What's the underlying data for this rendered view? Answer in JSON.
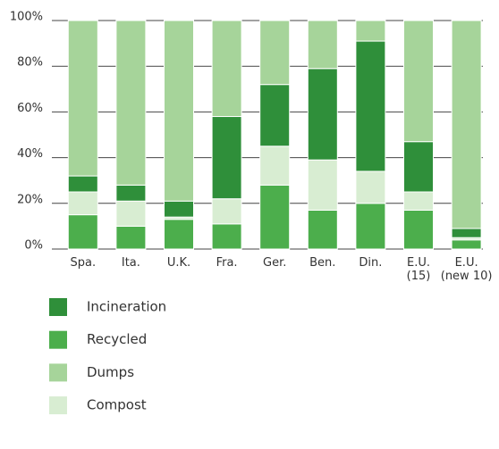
{
  "chart_data": {
    "type": "stacked_bar",
    "categories": [
      "Spa.",
      "Ita.",
      "U.K.",
      "Fra.",
      "Ger.",
      "Ben.",
      "Din.",
      "E.U.\n(15)",
      "E.U.\n(new 10)"
    ],
    "series": [
      {
        "name": "Incineration",
        "color": "#2f8f3a",
        "values": [
          7,
          7,
          7,
          36,
          27,
          40,
          57,
          22,
          4
        ]
      },
      {
        "name": "Recycled",
        "color": "#4cae4c",
        "values": [
          15,
          10,
          13,
          11,
          28,
          17,
          20,
          17,
          4
        ]
      },
      {
        "name": "Dumps",
        "color": "#a6d49a",
        "values": [
          68,
          72,
          79,
          42,
          28,
          21,
          9,
          53,
          91
        ]
      },
      {
        "name": "Compost",
        "color": "#d8edd2",
        "values": [
          10,
          11,
          1,
          11,
          17,
          22,
          14,
          8,
          1
        ]
      }
    ],
    "ylim": [
      0,
      100
    ],
    "yticks": [
      {
        "value": 0,
        "label": "0%"
      },
      {
        "value": 20,
        "label": "20%"
      },
      {
        "value": 40,
        "label": "40%"
      },
      {
        "value": 60,
        "label": "60%"
      },
      {
        "value": 80,
        "label": "80%"
      },
      {
        "value": 100,
        "label": "100%"
      }
    ],
    "grid": true
  }
}
